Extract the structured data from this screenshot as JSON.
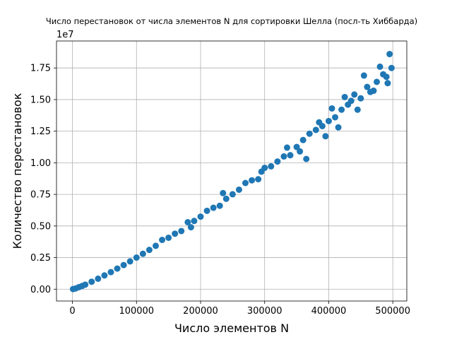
{
  "chart_data": {
    "type": "scatter",
    "title": "Число перестановок от числа элементов N для сортировки Шелла (посл-ть Хиббарда)",
    "xlabel": "Число элементов N",
    "ylabel": "Количество перестановок",
    "y_offset_label": "1e7",
    "color": "#1f77b4",
    "grid": true,
    "xlim": [
      -24850,
      521850
    ],
    "ylim": [
      -935000,
      19635000
    ],
    "xticks": [
      0,
      100000,
      200000,
      300000,
      400000,
      500000
    ],
    "yticks": [
      {
        "value": 0,
        "label": "0.00"
      },
      {
        "value": 2500000,
        "label": "0.25"
      },
      {
        "value": 5000000,
        "label": "0.50"
      },
      {
        "value": 7500000,
        "label": "0.75"
      },
      {
        "value": 10000000,
        "label": "1.00"
      },
      {
        "value": 12500000,
        "label": "1.25"
      },
      {
        "value": 15000000,
        "label": "1.50"
      },
      {
        "value": 17500000,
        "label": "1.75"
      }
    ],
    "x": [
      1000,
      5000,
      10000,
      15000,
      20000,
      30000,
      40000,
      50000,
      60000,
      70000,
      80000,
      90000,
      100000,
      110000,
      120000,
      130000,
      140000,
      150000,
      160000,
      170000,
      180000,
      185000,
      190000,
      200000,
      210000,
      220000,
      230000,
      235000,
      240000,
      250000,
      260000,
      270000,
      280000,
      290000,
      295000,
      300000,
      310000,
      320000,
      330000,
      335000,
      340000,
      350000,
      355000,
      360000,
      365000,
      370000,
      380000,
      385000,
      390000,
      395000,
      400000,
      405000,
      410000,
      415000,
      420000,
      425000,
      430000,
      435000,
      440000,
      445000,
      450000,
      455000,
      460000,
      465000,
      470000,
      475000,
      480000,
      485000,
      490000,
      492000,
      495000,
      498000
    ],
    "values": [
      10000,
      60000,
      160000,
      250000,
      360000,
      590000,
      830000,
      1090000,
      1350000,
      1630000,
      1910000,
      2200000,
      2500000,
      2800000,
      3110000,
      3430000,
      3900000,
      4070000,
      4390000,
      4600000,
      5300000,
      4900000,
      5400000,
      5740000,
      6200000,
      6440000,
      6600000,
      7600000,
      7150000,
      7510000,
      7870000,
      8400000,
      8610000,
      8700000,
      9300000,
      9600000,
      9720000,
      10100000,
      10500000,
      11200000,
      10600000,
      11250000,
      10900000,
      11800000,
      10300000,
      12300000,
      12600000,
      13200000,
      12900000,
      12100000,
      13300000,
      14300000,
      13600000,
      12800000,
      14200000,
      15200000,
      14600000,
      14900000,
      15400000,
      14200000,
      15100000,
      16900000,
      16000000,
      15600000,
      15700000,
      16400000,
      17600000,
      17000000,
      16800000,
      16300000,
      18600000,
      17500000
    ]
  }
}
